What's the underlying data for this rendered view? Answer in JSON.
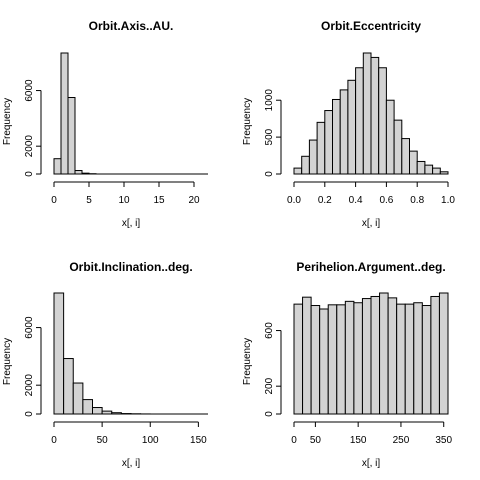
{
  "chart_data": [
    {
      "type": "bar",
      "title": "Orbit.Axis..AU.",
      "xlabel": "x[, i]",
      "ylabel": "Frequency",
      "bin_width": 1,
      "bin_start": 0,
      "values": [
        1100,
        8700,
        5500,
        250,
        60,
        20,
        0,
        0,
        0,
        0,
        0,
        0,
        0,
        0,
        0,
        0,
        0,
        0,
        0,
        0,
        0,
        0
      ],
      "x_ticks": [
        0,
        5,
        10,
        15,
        20
      ],
      "x_tick_labels": [
        "0",
        "5",
        "10",
        "15",
        "20"
      ],
      "y_ticks": [
        0,
        2000,
        6000
      ],
      "y_tick_labels": [
        "0",
        "2000",
        "6000"
      ],
      "xlim": [
        0,
        22
      ],
      "ylim": [
        0,
        8700
      ]
    },
    {
      "type": "bar",
      "title": "Orbit.Eccentricity",
      "xlabel": "x[, i]",
      "ylabel": "Frequency",
      "bin_width": 0.05,
      "bin_start": 0,
      "values": [
        80,
        240,
        460,
        700,
        860,
        1010,
        1140,
        1270,
        1440,
        1640,
        1580,
        1440,
        1000,
        730,
        480,
        310,
        170,
        120,
        80,
        30
      ],
      "x_ticks": [
        0,
        0.2,
        0.4,
        0.6,
        0.8,
        1.0
      ],
      "x_tick_labels": [
        "0.0",
        "0.2",
        "0.4",
        "0.6",
        "0.8",
        "1.0"
      ],
      "y_ticks": [
        0,
        500,
        1000
      ],
      "y_tick_labels": [
        "0",
        "500",
        "1000"
      ],
      "xlim": [
        0,
        1
      ],
      "ylim": [
        0,
        1640
      ]
    },
    {
      "type": "bar",
      "title": "Orbit.Inclination..deg.",
      "xlabel": "x[, i]",
      "ylabel": "Frequency",
      "bin_width": 10,
      "bin_start": 0,
      "values": [
        8400,
        3850,
        2150,
        1000,
        450,
        200,
        90,
        30,
        15,
        5,
        0,
        0,
        0,
        0,
        0,
        0
      ],
      "x_ticks": [
        0,
        50,
        100,
        150
      ],
      "x_tick_labels": [
        "0",
        "50",
        "100",
        "150"
      ],
      "y_ticks": [
        0,
        2000,
        6000
      ],
      "y_tick_labels": [
        "0",
        "2000",
        "6000"
      ],
      "xlim": [
        0,
        160
      ],
      "ylim": [
        0,
        8400
      ]
    },
    {
      "type": "bar",
      "title": "Perihelion.Argument..deg.",
      "xlabel": "x[, i]",
      "ylabel": "Frequency",
      "bin_width": 20,
      "bin_start": 0,
      "values": [
        790,
        840,
        780,
        755,
        785,
        785,
        810,
        800,
        830,
        845,
        870,
        835,
        790,
        790,
        800,
        780,
        845,
        870
      ],
      "x_ticks": [
        0,
        50,
        150,
        250,
        350
      ],
      "x_tick_labels": [
        "0",
        "50",
        "150",
        "250",
        "350"
      ],
      "y_ticks": [
        0,
        200,
        600
      ],
      "y_tick_labels": [
        "0",
        "200",
        "600"
      ],
      "xlim": [
        0,
        360
      ],
      "ylim": [
        0,
        870
      ]
    }
  ]
}
